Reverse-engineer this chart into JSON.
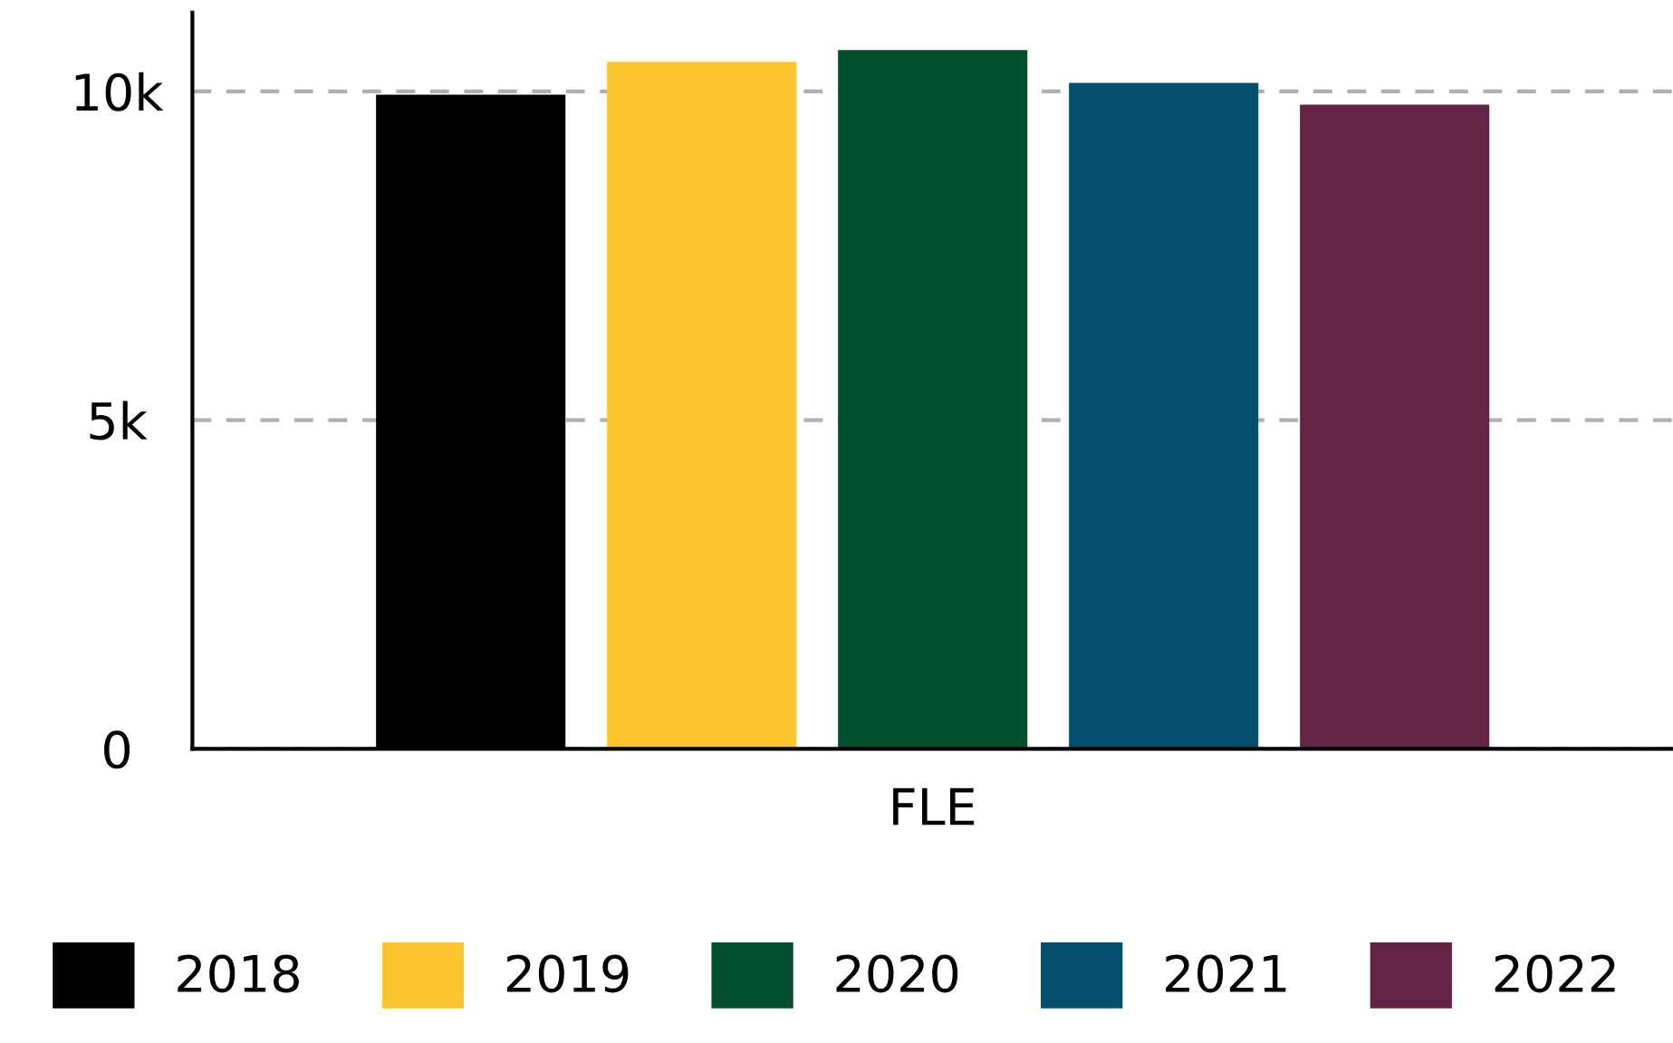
{
  "chart_data": {
    "type": "bar",
    "categories": [
      "FLE"
    ],
    "series": [
      {
        "name": "2018",
        "color": "#000000",
        "values": [
          9950
        ]
      },
      {
        "name": "2019",
        "color": "#fdc631",
        "values": [
          10450
        ]
      },
      {
        "name": "2020",
        "color": "#024f2f",
        "values": [
          10630
        ]
      },
      {
        "name": "2021",
        "color": "#024f6e",
        "values": [
          10130
        ]
      },
      {
        "name": "2022",
        "color": "#652345",
        "values": [
          9800
        ]
      }
    ],
    "ylim": [
      0,
      11200
    ],
    "yticks": [
      0,
      {
        "value": 5000,
        "label": "5k"
      },
      {
        "value": 10000,
        "label": "10k"
      }
    ],
    "grid": "y",
    "legend": "bottom"
  }
}
